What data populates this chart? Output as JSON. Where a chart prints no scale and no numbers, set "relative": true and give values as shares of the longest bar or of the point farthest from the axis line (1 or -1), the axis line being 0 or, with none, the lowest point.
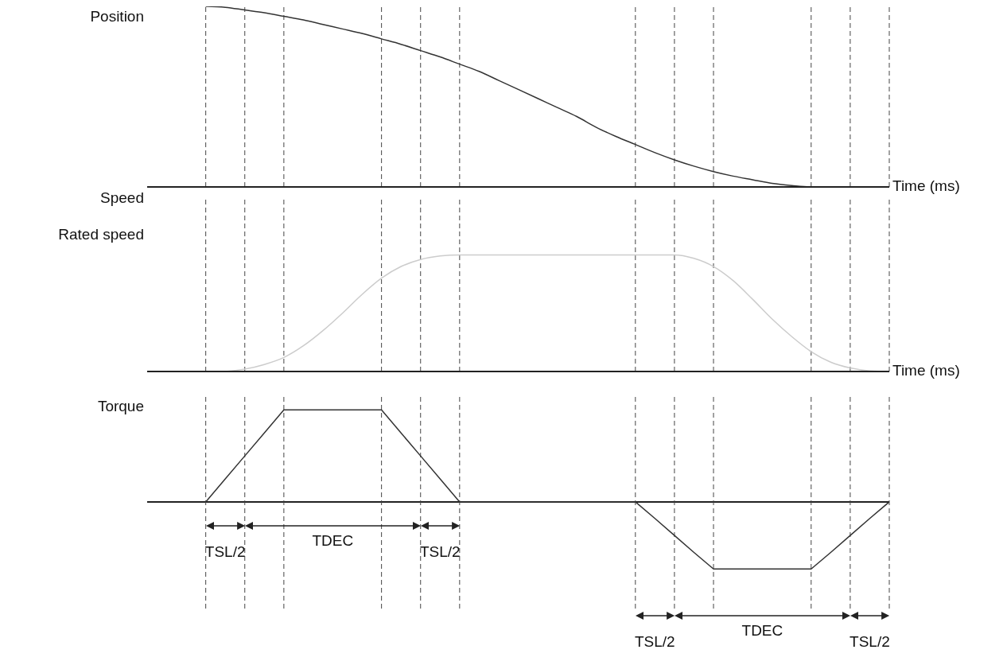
{
  "chart_data": [
    {
      "type": "line",
      "relative": true,
      "ylabel": "Position",
      "xlabel": "Time (ms)",
      "grid": "x",
      "categories": [
        null,
        null,
        null,
        null,
        null,
        null,
        null,
        null,
        null,
        null,
        null,
        null,
        null,
        null,
        null,
        null,
        null,
        null,
        null,
        null,
        null,
        null,
        null,
        null,
        null,
        null,
        null,
        null,
        null,
        null,
        null,
        null,
        null,
        null,
        null,
        null,
        null,
        null,
        null
      ],
      "series": [
        {
          "color": "#333333",
          "values": [
            null,
            null,
            null,
            1,
            0.995,
            0.98,
            0.965,
            0.945,
            0.925,
            0.9,
            0.875,
            0.85,
            0.82,
            0.79,
            0.755,
            0.72,
            0.68,
            0.64,
            0.59,
            0.54,
            0.49,
            0.44,
            0.39,
            0.33,
            0.28,
            0.235,
            0.19,
            0.15,
            0.115,
            0.085,
            0.06,
            0.04,
            0.02,
            0.008,
            0,
            0,
            0,
            0,
            0
          ]
        }
      ]
    },
    {
      "type": "line",
      "relative": true,
      "ylabel": "Speed",
      "xlabel": "Time (ms)",
      "grid": "x",
      "annotations": [
        "Rated speed"
      ],
      "categories": [
        null,
        null,
        null,
        null,
        null,
        null,
        null,
        null,
        null,
        null,
        null,
        null,
        null,
        null,
        null,
        null,
        null,
        null,
        null,
        null,
        null,
        null,
        null,
        null,
        null,
        null,
        null,
        null,
        null,
        null,
        null,
        null,
        null,
        null,
        null,
        null,
        null,
        null,
        null
      ],
      "series": [
        {
          "color": "#cccccc",
          "values": [
            null,
            null,
            null,
            null,
            0,
            0.02,
            0.06,
            0.12,
            0.22,
            0.35,
            0.5,
            0.66,
            0.8,
            0.9,
            0.96,
            0.99,
            1,
            1,
            1,
            1,
            1,
            1,
            1,
            1,
            1,
            1,
            1,
            1,
            0.97,
            0.9,
            0.78,
            0.62,
            0.45,
            0.3,
            0.17,
            0.08,
            0.03,
            0.005,
            0
          ]
        }
      ]
    },
    {
      "type": "line",
      "relative": true,
      "ylabel": "Torque",
      "grid": "x",
      "annotations": [
        "TSL/2",
        "TDEC",
        "TSL/2",
        "TSL/2",
        "TDEC",
        "TSL/2"
      ],
      "categories": [
        null,
        null,
        null,
        null,
        null,
        null,
        null,
        null,
        null,
        null,
        null,
        null,
        null,
        null,
        null,
        null,
        null,
        null,
        null,
        null,
        null,
        null,
        null,
        null,
        null,
        null,
        null,
        null,
        null,
        null,
        null,
        null,
        null,
        null,
        null,
        null,
        null,
        null,
        null
      ],
      "series": [
        {
          "color": "#333333",
          "values": [
            null,
            null,
            null,
            0,
            0.25,
            0.5,
            0.75,
            1,
            1,
            1,
            1,
            1,
            1,
            0.75,
            0.5,
            0.25,
            0,
            0,
            0,
            0,
            0,
            0,
            0,
            0,
            0,
            0,
            -0.18,
            -0.365,
            -0.55,
            -0.73,
            -0.73,
            -0.73,
            -0.73,
            -0.73,
            -0.73,
            -0.55,
            -0.365,
            -0.18,
            0
          ]
        }
      ]
    }
  ]
}
